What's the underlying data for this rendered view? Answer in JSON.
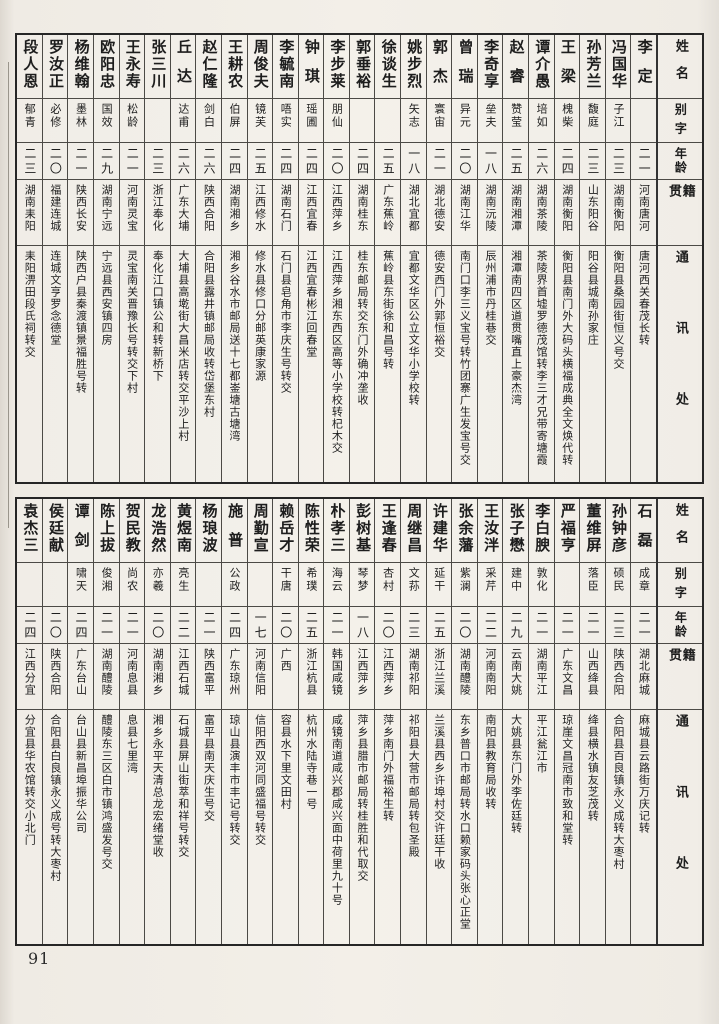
{
  "page_number": "91",
  "headers": {
    "name": "姓名",
    "zi": "别字",
    "age": "年龄",
    "jiguan": "籍贯",
    "address": "通讯处"
  },
  "column_order": "right-to-left",
  "tables": [
    {
      "people": [
        {
          "name": "李定",
          "zi": "",
          "age": "二一",
          "jiguan": "河南唐河",
          "address": "唐河西关春茂长转"
        },
        {
          "name": "冯国华",
          "zi": "子江",
          "age": "二三",
          "jiguan": "湖南衡阳",
          "address": "衡阳县桑园街恒义号交"
        },
        {
          "name": "孙芳兰",
          "zi": "馥庭",
          "age": "二三",
          "jiguan": "山东阳谷",
          "address": "阳谷县城南孙家庄"
        },
        {
          "name": "王梁",
          "zi": "槐柴",
          "age": "二四",
          "jiguan": "湖南衡阳",
          "address": "衡阳县南门外大码头横福成典全文焕代转"
        },
        {
          "name": "谭介愚",
          "zi": "培如",
          "age": "二六",
          "jiguan": "湖南茶陵",
          "address": "茶陵界首墟罗德茂馆转李三才兄带寄塘霞"
        },
        {
          "name": "赵睿",
          "zi": "赞莹",
          "age": "二五",
          "jiguan": "湖南湘潭",
          "address": "湘潭南四区道贯嘴直上豪杰湾"
        },
        {
          "name": "李奇享",
          "zi": "垒夫",
          "age": "一八",
          "jiguan": "湖南沅陵",
          "address": "辰州浦市丹桂巷交"
        },
        {
          "name": "曾瑞",
          "zi": "异元",
          "age": "二〇",
          "jiguan": "湖南江华",
          "address": "南门口李三义宝号转竹团寨广生发宝号交"
        },
        {
          "name": "郭杰",
          "zi": "寰宙",
          "age": "二一",
          "jiguan": "湖北德安",
          "address": "德安西门外郭恒裕交"
        },
        {
          "name": "姚步烈",
          "zi": "矢志",
          "age": "一八",
          "jiguan": "湖北宜都",
          "address": "宜都文华区公立文华小学校转"
        },
        {
          "name": "徐谈生",
          "zi": "",
          "age": "二五",
          "jiguan": "广东蕉岭",
          "address": "蕉岭县东街徐和昌号转"
        },
        {
          "name": "郭垂裕",
          "zi": "",
          "age": "二四",
          "jiguan": "湖南桂东",
          "address": "桂东邮局转交东门外确冲垄收"
        },
        {
          "name": "李步莱",
          "zi": "朋仙",
          "age": "二〇",
          "jiguan": "江西萍乡",
          "address": "江西萍乡湘东西区高等小学校转杞木交"
        },
        {
          "name": "钟琪",
          "zi": "瑶圃",
          "age": "二四",
          "jiguan": "江西宜春",
          "address": "江西宜春彬江回春堂"
        },
        {
          "name": "李毓南",
          "zi": "唔实",
          "age": "二四",
          "jiguan": "湖南石门",
          "address": "石门县皂角市李庆生号转交"
        },
        {
          "name": "周俊夫",
          "zi": "镜芙",
          "age": "二五",
          "jiguan": "江西修水",
          "address": "修水县修口分邮英康家源"
        },
        {
          "name": "王耕农",
          "zi": "伯屏",
          "age": "二四",
          "jiguan": "湖南湘乡",
          "address": "湘乡谷水市邮局送十七都崟塘古塘湾"
        },
        {
          "name": "赵仁隆",
          "zi": "剑白",
          "age": "二六",
          "jiguan": "陕西合阳",
          "address": "合阳县露井镇邮局收转岱堡东村"
        },
        {
          "name": "丘达",
          "zi": "达甫",
          "age": "二六",
          "jiguan": "广东大埔",
          "address": "大埔县高墘街大昌米店转交平沙上村"
        },
        {
          "name": "张三川",
          "zi": "",
          "age": "二三",
          "jiguan": "浙江奉化",
          "address": "奉化江口镇公和转新桥下"
        },
        {
          "name": "王永寿",
          "zi": "松龄",
          "age": "二一",
          "jiguan": "河南灵宝",
          "address": "灵宝南关晋豫长号转交下村"
        },
        {
          "name": "欧阳忠",
          "zi": "国效",
          "age": "二九",
          "jiguan": "湖南宁远",
          "address": "宁远县西安镇四房"
        },
        {
          "name": "杨维翰",
          "zi": "墨林",
          "age": "二一",
          "jiguan": "陕西长安",
          "address": "陕西户县秦渡镇景福胜号转"
        },
        {
          "name": "罗汝正",
          "zi": "必修",
          "age": "二〇",
          "jiguan": "福建连城",
          "address": "连城文亨罗念德堂"
        },
        {
          "name": "段人恩",
          "zi": "郁青",
          "age": "二三",
          "jiguan": "湖南耒阳",
          "address": "耒阳淠田段氏祠转交"
        }
      ]
    },
    {
      "people": [
        {
          "name": "石磊",
          "zi": "成章",
          "age": "二一",
          "jiguan": "湖北麻城",
          "address": "麻城县云路街万庆记转"
        },
        {
          "name": "孙钟彦",
          "zi": "硕民",
          "age": "二三",
          "jiguan": "陕西合阳",
          "address": "合阳县百良镇永义成转大枣村"
        },
        {
          "name": "董维屏",
          "zi": "落臣",
          "age": "二一",
          "jiguan": "山西绛县",
          "address": "绛县横水镇友芝茂转"
        },
        {
          "name": "严福亨",
          "zi": "",
          "age": "二一",
          "jiguan": "广东文昌",
          "address": "琼崖文昌冠南市致和堂转"
        },
        {
          "name": "李白腴",
          "zi": "敦化",
          "age": "二一",
          "jiguan": "湖南平江",
          "address": "平江瓮江市"
        },
        {
          "name": "张子懋",
          "zi": "建中",
          "age": "二九",
          "jiguan": "云南大姚",
          "address": "大姚县东门外李佐廷转"
        },
        {
          "name": "王汝泮",
          "zi": "采芹",
          "age": "二二",
          "jiguan": "河南南阳",
          "address": "南阳县教育局收转"
        },
        {
          "name": "张余藩",
          "zi": "紫澜",
          "age": "二〇",
          "jiguan": "湖南醴陵",
          "address": "东乡普口市邮局转水口赖家码头张心正堂"
        },
        {
          "name": "许建华",
          "zi": "延干",
          "age": "二五",
          "jiguan": "浙江兰溪",
          "address": "兰溪县西乡许埠村交许廷干收"
        },
        {
          "name": "周继昌",
          "zi": "文荪",
          "age": "二三",
          "jiguan": "湖南祁阳",
          "address": "祁阳县大营市邮局转包圣殿"
        },
        {
          "name": "王逢春",
          "zi": "杏村",
          "age": "二〇",
          "jiguan": "江西萍乡",
          "address": "萍乡南门外福裕生转"
        },
        {
          "name": "彭树基",
          "zi": "琴梦",
          "age": "一八",
          "jiguan": "江西萍乡",
          "address": "萍乡县腊市邮局转桂胜和代取交"
        },
        {
          "name": "朴孝三",
          "zi": "海云",
          "age": "二一",
          "jiguan": "韩国咸镜",
          "address": "咸镜南道咸兴郡咸兴面中荷里九十号"
        },
        {
          "name": "陈性荣",
          "zi": "希璞",
          "age": "二五",
          "jiguan": "浙江杭县",
          "address": "杭州水陆寺巷一号"
        },
        {
          "name": "赖岳才",
          "zi": "干唐",
          "age": "二〇",
          "jiguan": "广西",
          "address": "容县水下里文田村"
        },
        {
          "name": "周勤宣",
          "zi": "",
          "age": "一七",
          "jiguan": "河南信阳",
          "address": "信阳西双河同盛福号转交"
        },
        {
          "name": "施普",
          "zi": "公政",
          "age": "二四",
          "jiguan": "广东琼州",
          "address": "琼山县演丰市丰记号转交"
        },
        {
          "name": "杨琅波",
          "zi": "",
          "age": "二一",
          "jiguan": "陕西富平",
          "address": "富平县南天庆生号交"
        },
        {
          "name": "黄煜南",
          "zi": "亮生",
          "age": "二二",
          "jiguan": "江西石城",
          "address": "石城县屏山街萃和祥号转交"
        },
        {
          "name": "龙浩然",
          "zi": "亦羲",
          "age": "二〇",
          "jiguan": "湖南湘乡",
          "address": "湘乡永平天清总龙宏绪堂收"
        },
        {
          "name": "贺民教",
          "zi": "尚农",
          "age": "二一",
          "jiguan": "河南息县",
          "address": "息县七里湾"
        },
        {
          "name": "陈上拔",
          "zi": "俊湘",
          "age": "二一",
          "jiguan": "湖南醴陵",
          "address": "醴陵东三区白市镇鸿盛发号交"
        },
        {
          "name": "谭剑",
          "zi": "啸天",
          "age": "二四",
          "jiguan": "广东台山",
          "address": "台山县新昌埠振华公司"
        },
        {
          "name": "侯廷献",
          "zi": "",
          "age": "二〇",
          "jiguan": "陕西合阳",
          "address": "合阳县白良镇永义成号转大枣村"
        },
        {
          "name": "袁杰三",
          "zi": "",
          "age": "二四",
          "jiguan": "江西分宜",
          "address": "分宜县华农馆转交小北门"
        }
      ]
    }
  ]
}
